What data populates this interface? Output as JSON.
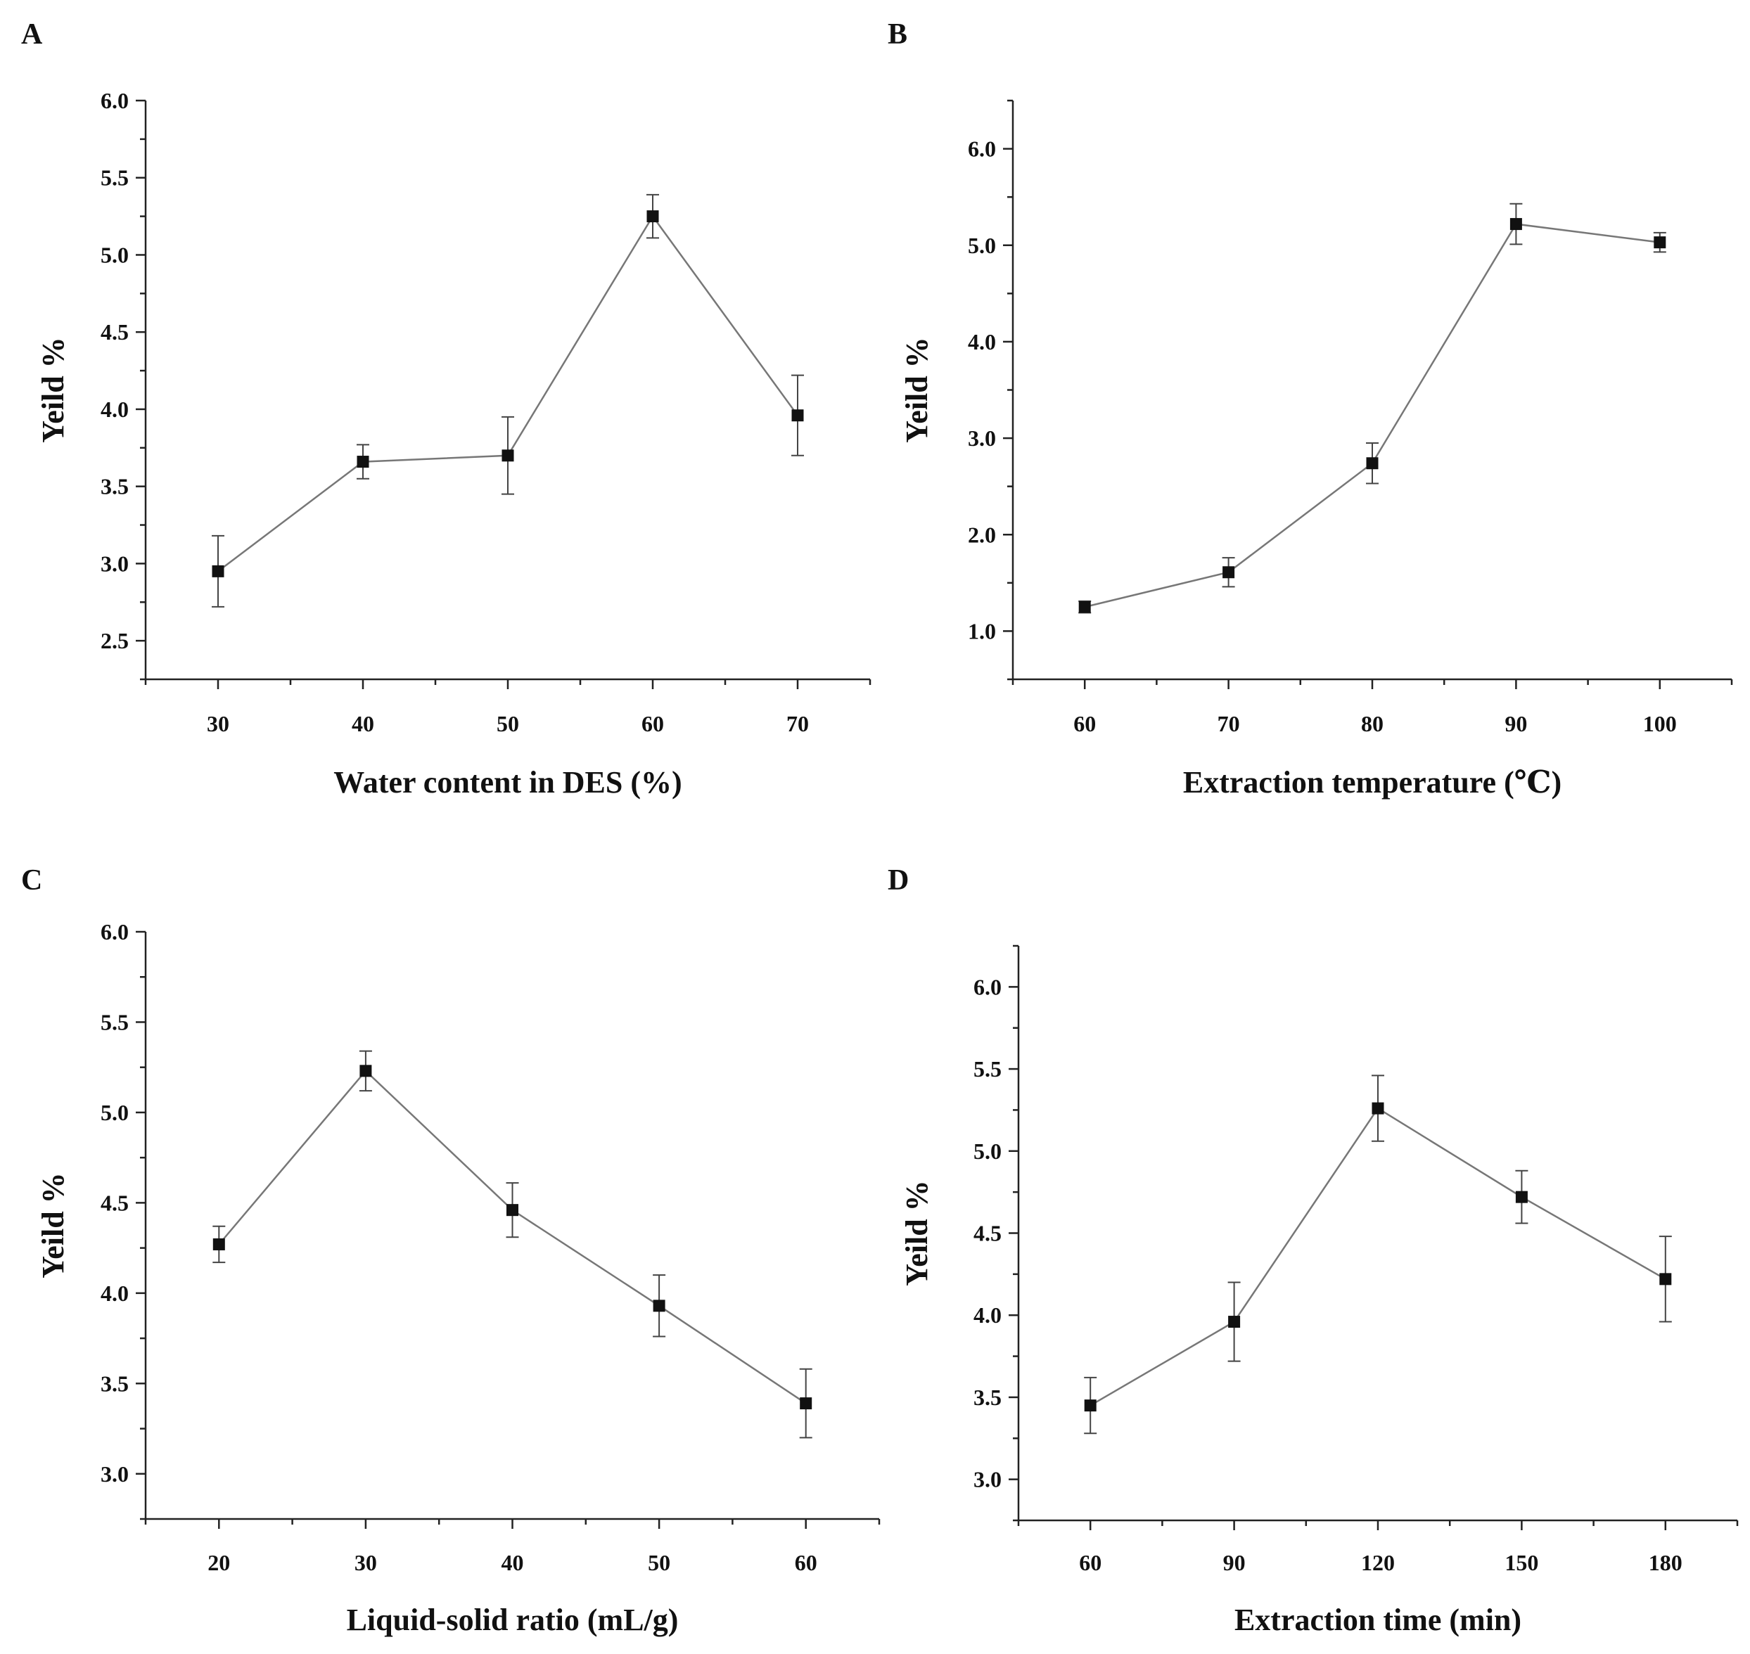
{
  "chart_data": [
    {
      "panel": "A",
      "type": "line",
      "xlabel": "Water content in DES (%)",
      "ylabel": "Yeild %",
      "x": [
        30,
        40,
        50,
        60,
        70
      ],
      "values": [
        2.95,
        3.66,
        3.7,
        5.25,
        3.96
      ],
      "errors": [
        0.23,
        0.11,
        0.25,
        0.14,
        0.26
      ],
      "xticks": [
        30,
        40,
        50,
        60,
        70
      ],
      "xtick_labels": [
        "30",
        "40",
        "50",
        "60",
        "70"
      ],
      "xlim": [
        25,
        75
      ],
      "yticks": [
        2.5,
        3.0,
        3.5,
        4.0,
        4.5,
        5.0,
        5.5,
        6.0
      ],
      "ytick_labels": [
        "2.5",
        "3.0",
        "3.5",
        "4.0",
        "4.5",
        "5.0",
        "5.5",
        "6.0"
      ],
      "ylim": [
        2.25,
        6.0
      ]
    },
    {
      "panel": "B",
      "type": "line",
      "xlabel": "Extraction temperature (℃)",
      "ylabel": "Yeild %",
      "x": [
        60,
        70,
        80,
        90,
        100
      ],
      "values": [
        1.25,
        1.61,
        2.74,
        5.22,
        5.03
      ],
      "errors": [
        0.06,
        0.15,
        0.21,
        0.21,
        0.1
      ],
      "xticks": [
        60,
        70,
        80,
        90,
        100
      ],
      "xtick_labels": [
        "60",
        "70",
        "80",
        "90",
        "100"
      ],
      "xlim": [
        55,
        105
      ],
      "yticks": [
        1.0,
        2.0,
        3.0,
        4.0,
        5.0,
        6.0
      ],
      "ytick_labels": [
        "1.0",
        "2.0",
        "3.0",
        "4.0",
        "5.0",
        "6.0"
      ],
      "ylim": [
        0.5,
        6.5
      ]
    },
    {
      "panel": "C",
      "type": "line",
      "xlabel": "Liquid-solid ratio (mL/g)",
      "ylabel": "Yeild %",
      "x": [
        20,
        30,
        40,
        50,
        60
      ],
      "values": [
        4.27,
        5.23,
        4.46,
        3.93,
        3.39
      ],
      "errors": [
        0.1,
        0.11,
        0.15,
        0.17,
        0.19
      ],
      "xticks": [
        20,
        30,
        40,
        50,
        60
      ],
      "xtick_labels": [
        "20",
        "30",
        "40",
        "50",
        "60"
      ],
      "xlim": [
        15,
        65
      ],
      "yticks": [
        3.0,
        3.5,
        4.0,
        4.5,
        5.0,
        5.5,
        6.0
      ],
      "ytick_labels": [
        "3.0",
        "3.5",
        "4.0",
        "4.5",
        "5.0",
        "5.5",
        "6.0"
      ],
      "ylim": [
        2.75,
        6.0
      ]
    },
    {
      "panel": "D",
      "type": "line",
      "xlabel": "Extraction time (min)",
      "ylabel": "Yeild %",
      "x": [
        60,
        90,
        120,
        150,
        180
      ],
      "values": [
        3.45,
        3.96,
        5.26,
        4.72,
        4.22
      ],
      "errors": [
        0.17,
        0.24,
        0.2,
        0.16,
        0.26
      ],
      "xticks": [
        60,
        90,
        120,
        150,
        180
      ],
      "xtick_labels": [
        "60",
        "90",
        "120",
        "150",
        "180"
      ],
      "xlim": [
        45,
        195
      ],
      "yticks": [
        3.0,
        3.5,
        4.0,
        4.5,
        5.0,
        5.5,
        6.0
      ],
      "ytick_labels": [
        "3.0",
        "3.5",
        "4.0",
        "4.5",
        "5.0",
        "5.5",
        "6.0"
      ],
      "ylim": [
        2.75,
        6.25
      ]
    }
  ]
}
